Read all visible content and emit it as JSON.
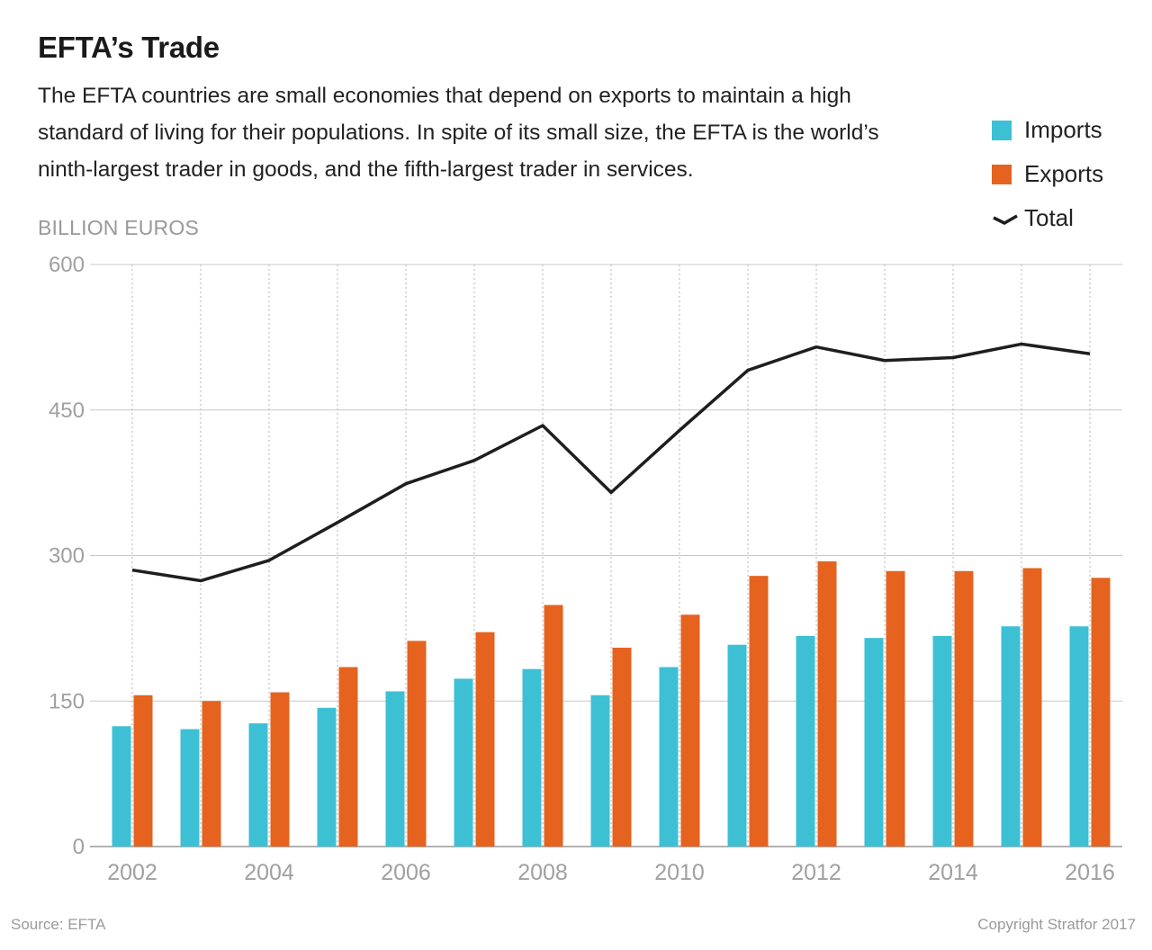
{
  "header": {
    "title": "EFTA’s Trade",
    "subtitle": "The EFTA countries are small economies that depend on exports to maintain a high standard of living for their populations. In spite of its small size, the EFTA is the world’s ninth-largest trader in goods, and the fifth-largest trader in services."
  },
  "legend": {
    "imports": "Imports",
    "exports": "Exports",
    "total": "Total"
  },
  "footer": {
    "source": "Source: EFTA",
    "copyright": "Copyright Stratfor 2017"
  },
  "colors": {
    "imports": "#3dc0d4",
    "exports": "#e5631f",
    "total": "#1e1e1e",
    "grid": "#c8c8c8",
    "axis_text": "#a0a0a0"
  },
  "chart_data": {
    "type": "bar",
    "ylabel": "BILLION EUROS",
    "ylim": [
      0,
      600
    ],
    "yticks": [
      0,
      150,
      300,
      450,
      600
    ],
    "x": [
      2002,
      2003,
      2004,
      2005,
      2006,
      2007,
      2008,
      2009,
      2010,
      2011,
      2012,
      2013,
      2014,
      2015,
      2016
    ],
    "xtick_labels": [
      "2002",
      "2004",
      "2006",
      "2008",
      "2010",
      "2012",
      "2014",
      "2016"
    ],
    "grid": true,
    "legend_position": "top-right",
    "series": [
      {
        "name": "Imports",
        "type": "bar",
        "values": [
          124,
          121,
          127,
          143,
          160,
          173,
          183,
          156,
          185,
          208,
          217,
          215,
          217,
          227,
          227
        ]
      },
      {
        "name": "Exports",
        "type": "bar",
        "values": [
          156,
          150,
          159,
          185,
          212,
          221,
          249,
          205,
          239,
          279,
          294,
          284,
          284,
          287,
          277
        ]
      },
      {
        "name": "Total",
        "type": "line",
        "values": [
          285,
          274,
          295,
          334,
          374,
          398,
          434,
          365,
          429,
          491,
          515,
          501,
          504,
          518,
          508
        ]
      }
    ]
  }
}
